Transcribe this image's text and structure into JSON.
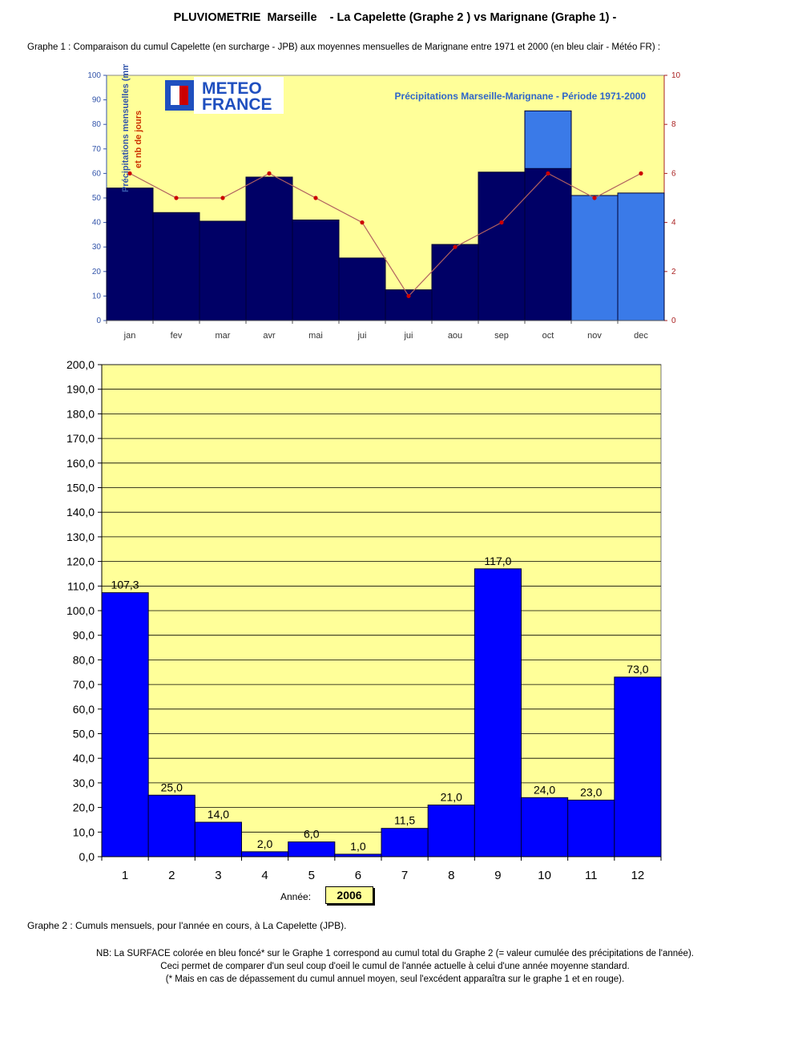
{
  "page": {
    "title": "PLUVIOMETRIE  Marseille    - La Capelette (Graphe 2 ) vs Marignane (Graphe 1) -",
    "graph1_description": "Graphe 1 : Comparaison du cumul Capelette (en surcharge - JPB) aux moyennes mensuelles de Marignane entre 1971 et 2000 (en bleu clair - Météo FR) :",
    "year_label": "Année:",
    "year_value": "2006",
    "graph2_description": "Graphe 2 : Cumuls mensuels, pour l'année en cours, à La Capelette (JPB).",
    "nb_lines": [
      "NB: La SURFACE colorée en bleu foncé* sur le Graphe 1 correspond au cumul total du Graphe 2 (= valeur cumulée des précipitations de l'année).",
      "Ceci permet de comparer d'un seul coup d'oeil le cumul de l'année actuelle à celui d'une année moyenne standard.",
      "(* Mais en cas de dépassement du cumul annuel moyen, seul l'excédent apparaîtra sur le graphe 1 et en rouge)."
    ]
  },
  "chart_data": [
    {
      "type": "bar",
      "title": "Précipitations Marseille-Marignane - Période 1971-2000",
      "logo_text": [
        "METEO",
        "FRANCE"
      ],
      "logo_icon": "meteo-france-logo",
      "ylabel": "Précipitations mensuelles (mm)",
      "ylabel2": "et nb de jours",
      "categories": [
        "jan",
        "fev",
        "mar",
        "avr",
        "mai",
        "jui",
        "jui",
        "aou",
        "sep",
        "oct",
        "nov",
        "dec"
      ],
      "ylim": [
        0,
        100
      ],
      "yticks": [
        "0",
        "10",
        "20",
        "30",
        "40",
        "50",
        "60",
        "70",
        "80",
        "90",
        "100"
      ],
      "y2lim": [
        0,
        10
      ],
      "y2ticks": [
        "0",
        "2",
        "4",
        "6",
        "8",
        "10"
      ],
      "series": [
        {
          "values": [
            54,
            44,
            40.5,
            58.5,
            41,
            25.5,
            12.5,
            31,
            60.5,
            85.5,
            51,
            52
          ],
          "color": "#3a7ae8",
          "axis": "left",
          "kind": "bar"
        },
        {
          "values": [
            54,
            44,
            40.5,
            58.5,
            41,
            25.5,
            12.5,
            31,
            60.5,
            62,
            0,
            0
          ],
          "color": "#000066",
          "axis": "left",
          "kind": "bar"
        },
        {
          "values": [
            6,
            5,
            5,
            6,
            5,
            4,
            1,
            3,
            4,
            6,
            5,
            6
          ],
          "color": "#cc0000",
          "axis": "right",
          "kind": "line"
        }
      ],
      "grid": false,
      "background": "#ffff99"
    },
    {
      "type": "bar",
      "categories": [
        "1",
        "2",
        "3",
        "4",
        "5",
        "6",
        "7",
        "8",
        "9",
        "10",
        "11",
        "12"
      ],
      "values": [
        107.3,
        25.0,
        14.0,
        2.0,
        6.0,
        1.0,
        11.5,
        21.0,
        117.0,
        24.0,
        23.0,
        73.0
      ],
      "data_labels": [
        "107,3",
        "25,0",
        "14,0",
        "2,0",
        "6,0",
        "1,0",
        "11,5",
        "21,0",
        "117,0",
        "24,0",
        "23,0",
        "73,0"
      ],
      "ylim": [
        0,
        200
      ],
      "yticks": [
        "0,0",
        "10,0",
        "20,0",
        "30,0",
        "40,0",
        "50,0",
        "60,0",
        "70,0",
        "80,0",
        "90,0",
        "100,0",
        "110,0",
        "120,0",
        "130,0",
        "140,0",
        "150,0",
        "160,0",
        "170,0",
        "180,0",
        "190,0",
        "200,0"
      ],
      "grid": true,
      "bar_color": "#0000ff",
      "background": "#ffff99"
    }
  ]
}
